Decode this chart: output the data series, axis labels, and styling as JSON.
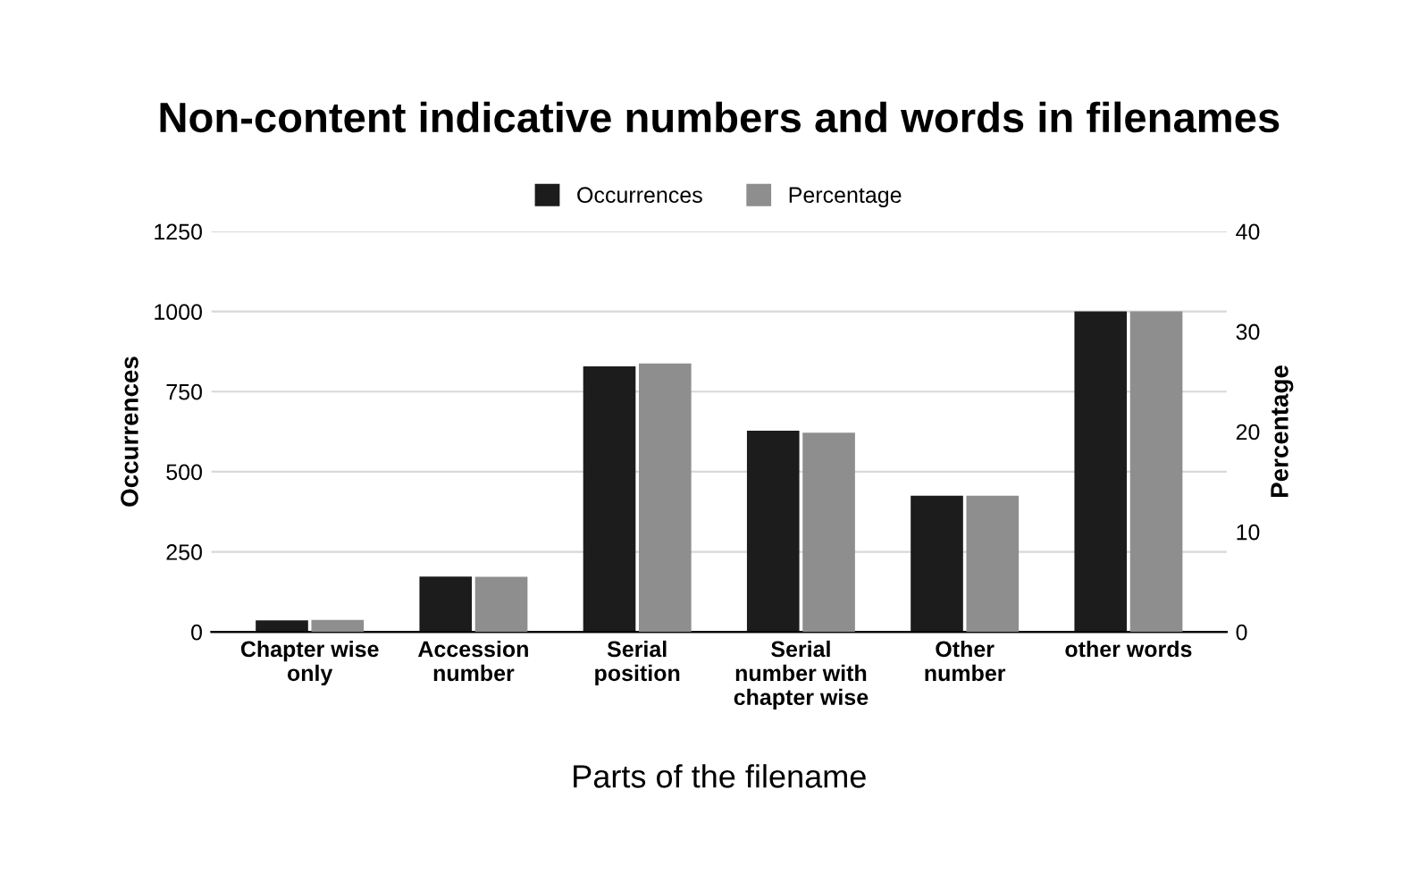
{
  "chart_data": {
    "type": "bar",
    "title": "Non-content indicative numbers and words in filenames",
    "xlabel": "Parts of the filename",
    "ylabel": "Occurrences",
    "y2label": "Percentage",
    "categories": [
      "Chapter wise\nonly",
      "Accession\nnumber",
      "Serial\nposition",
      "Serial\nnumber with\nchapter wise",
      "Other\nnumber",
      "other words"
    ],
    "series": [
      {
        "name": "Occurrences",
        "color": "#1c1c1c",
        "values": [
          36,
          173,
          829,
          628,
          425,
          1000
        ]
      },
      {
        "name": "Percentage",
        "color": "#8e8e8e",
        "axis": "y2",
        "values": [
          1.2,
          5.5,
          26.8,
          19.9,
          13.6,
          32.0
        ]
      }
    ],
    "ylim": [
      0,
      1250
    ],
    "yticks": [
      0,
      250,
      500,
      750,
      1000,
      1250
    ],
    "y2lim": [
      0,
      40
    ],
    "y2ticks": [
      0,
      10,
      20,
      30,
      40
    ],
    "grid": "y",
    "legend": "top"
  }
}
